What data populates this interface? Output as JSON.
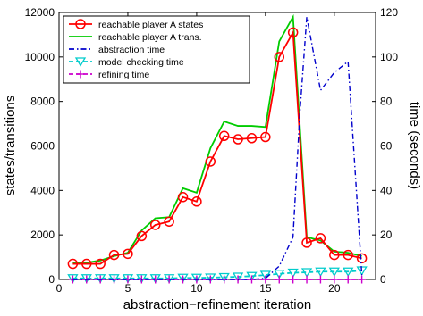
{
  "chart_data": {
    "type": "line",
    "xlabel": "abstraction−refinement iteration",
    "ylabel_left": "states/transitions",
    "ylabel_right": "time (seconds)",
    "xlim": [
      0,
      23
    ],
    "ylim_left": [
      0,
      12000
    ],
    "ylim_right": [
      0,
      120
    ],
    "xticks": [
      "0",
      "5",
      "10",
      "15",
      "20"
    ],
    "yticks_left": [
      "0",
      "2000",
      "4000",
      "6000",
      "8000",
      "10000",
      "12000"
    ],
    "yticks_right": [
      "0",
      "20",
      "40",
      "60",
      "80",
      "100",
      "120"
    ],
    "grid": false,
    "legend_position": "top-left",
    "series": [
      {
        "name": "reachable player A states",
        "axis": "left",
        "color": "#ff0000",
        "marker": "circle",
        "x": [
          1,
          2,
          3,
          4,
          5,
          6,
          7,
          8,
          9,
          10,
          11,
          12,
          13,
          14,
          15,
          16,
          17,
          18,
          19,
          20,
          21,
          22
        ],
        "y": [
          700,
          700,
          700,
          1100,
          1150,
          1950,
          2450,
          2600,
          3700,
          3500,
          5300,
          6450,
          6300,
          6350,
          6400,
          10000,
          11100,
          1650,
          1850,
          1100,
          1100,
          950
        ]
      },
      {
        "name": "reachable player A trans.",
        "axis": "left",
        "color": "#00cc00",
        "marker": "none",
        "x": [
          1,
          2,
          3,
          4,
          5,
          6,
          7,
          8,
          9,
          10,
          11,
          12,
          13,
          14,
          15,
          16,
          17,
          18,
          19,
          20,
          21,
          22
        ],
        "y": [
          750,
          750,
          850,
          1050,
          1200,
          2200,
          2750,
          2800,
          4100,
          3900,
          5900,
          7100,
          6900,
          6900,
          6850,
          10700,
          11800,
          1900,
          1750,
          1250,
          1200,
          1050
        ]
      },
      {
        "name": "abstraction time",
        "axis": "right",
        "color": "#0000cc",
        "marker": "none",
        "x": [
          1,
          2,
          3,
          4,
          5,
          6,
          7,
          8,
          9,
          10,
          11,
          12,
          13,
          14,
          15,
          16,
          17,
          17.5,
          18,
          19,
          20,
          21,
          22
        ],
        "y": [
          0,
          0,
          0,
          0,
          0,
          0,
          0,
          0,
          0,
          0,
          0,
          0,
          0,
          0,
          0.5,
          6,
          19,
          75,
          118,
          85,
          93,
          98,
          2
        ]
      },
      {
        "name": "model checking time",
        "axis": "right",
        "color": "#00cccc",
        "marker": "triangle-down",
        "x": [
          1,
          2,
          3,
          4,
          5,
          6,
          7,
          8,
          9,
          10,
          11,
          12,
          13,
          14,
          15,
          16,
          17,
          18,
          19,
          20,
          21,
          22
        ],
        "y": [
          0.5,
          0.5,
          0.5,
          0.5,
          0.5,
          0.5,
          0.5,
          0.5,
          0.7,
          0.7,
          0.8,
          1,
          1.2,
          1.5,
          2,
          2.5,
          3,
          3.2,
          3.5,
          3.5,
          3.5,
          4
        ]
      },
      {
        "name": "refining time",
        "axis": "right",
        "color": "#cc00cc",
        "marker": "plus",
        "x": [
          1,
          2,
          3,
          4,
          5,
          6,
          7,
          8,
          9,
          10,
          11,
          12,
          13,
          14,
          15,
          16,
          17,
          18,
          19,
          20,
          21,
          22
        ],
        "y": [
          0,
          0,
          0,
          0,
          0,
          0,
          0,
          0,
          0,
          0,
          0,
          0,
          0,
          0,
          0,
          0,
          0,
          0,
          0,
          0,
          0,
          0
        ]
      }
    ]
  }
}
